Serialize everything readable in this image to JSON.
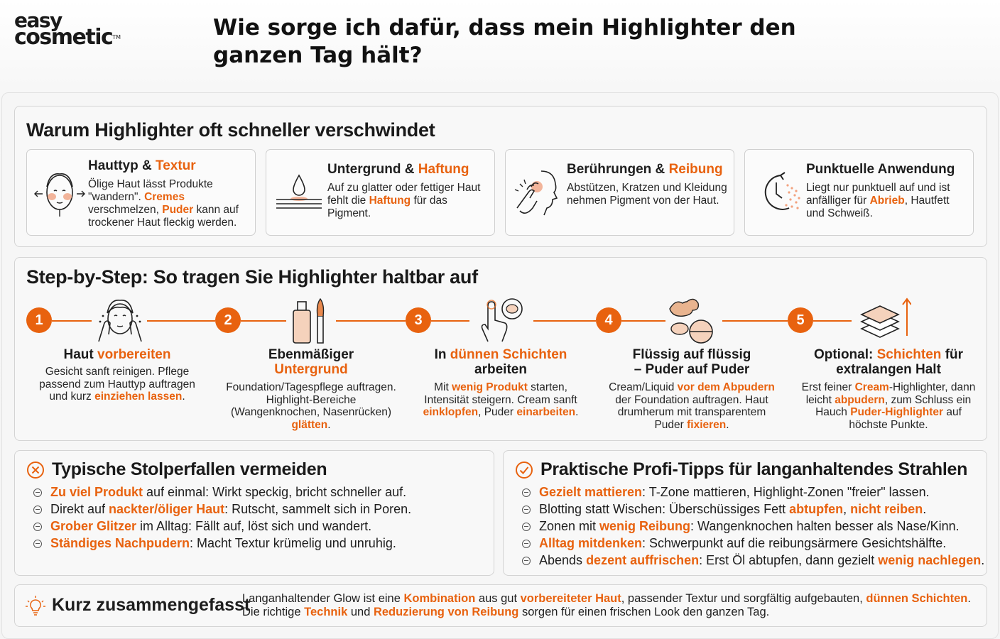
{
  "brand": {
    "line1": "easy",
    "line2": "cosmetic",
    "tm": "TM"
  },
  "title": "Wie sorge ich dafür, dass mein Highlighter den ganzen Tag hält?",
  "reasons": {
    "heading": "Warum Highlighter oft schneller verschwindet",
    "cards": [
      {
        "icon": "face-oily-skin-icon",
        "title": [
          "Hauttyp & ",
          "Textur"
        ],
        "desc": [
          [
            "Ölige Haut lässt Produkte \"wandern\". ",
            false
          ],
          [
            "Cremes",
            true
          ],
          [
            " verschmelzen, ",
            false
          ],
          [
            "Puder",
            true
          ],
          [
            " kann auf trockener Haut fleckig werden.",
            false
          ]
        ]
      },
      {
        "icon": "droplet-surface-icon",
        "title": [
          "Untergrund & ",
          "Haftung"
        ],
        "desc": [
          [
            "Auf zu glatter oder fettiger Haut fehlt die ",
            false
          ],
          [
            "Haftung",
            true
          ],
          [
            " für das Pigment.",
            false
          ]
        ]
      },
      {
        "icon": "hand-touching-face-icon",
        "title": [
          "Berührungen & ",
          "Reibung"
        ],
        "desc": [
          [
            "Abstützen, Kratzen und Kleidung nehmen Pigment von der Haut.",
            false
          ]
        ]
      },
      {
        "icon": "clock-dots-icon",
        "title": [
          "Punktuelle Anwendung",
          ""
        ],
        "desc": [
          [
            "Liegt nur punktuell auf und ist anfälliger für ",
            false
          ],
          [
            "Abrieb",
            true
          ],
          [
            ", Hautfett und Schweiß.",
            false
          ]
        ]
      }
    ]
  },
  "steps": {
    "heading": "Step-by-Step: So tragen Sie Highlighter haltbar auf",
    "items": [
      {
        "num": "1",
        "icon": "face-cleansing-icon",
        "title": [
          [
            "Haut ",
            false
          ],
          [
            "vorbereiten",
            true
          ]
        ],
        "desc": [
          [
            "Gesicht sanft reinigen. Pflege passend zum Hauttyp auftragen und kurz ",
            false
          ],
          [
            "einziehen lassen",
            true
          ],
          [
            ".",
            false
          ]
        ]
      },
      {
        "num": "2",
        "icon": "foundation-bottle-brush-icon",
        "title": [
          [
            "Ebenmäßiger ",
            false
          ],
          [
            "Untergrund",
            true
          ]
        ],
        "desc": [
          [
            "Foundation/Tagespflege auftragen. Highlight-Bereiche (Wangenknochen, Nasenrücken) ",
            false
          ],
          [
            "glätten",
            true
          ],
          [
            ".",
            false
          ]
        ]
      },
      {
        "num": "3",
        "icon": "finger-compact-icon",
        "title": [
          [
            "In ",
            false
          ],
          [
            "dünnen Schichten",
            true
          ],
          [
            " arbeiten",
            false
          ]
        ],
        "desc": [
          [
            "Mit ",
            false
          ],
          [
            "wenig Produkt",
            true
          ],
          [
            " starten, Intensität steigern. Cream sanft ",
            false
          ],
          [
            "einklopfen",
            true
          ],
          [
            ", Puder ",
            false
          ],
          [
            "einarbeiten",
            true
          ],
          [
            ".",
            false
          ]
        ]
      },
      {
        "num": "4",
        "icon": "cream-and-powder-icon",
        "title": [
          [
            "Flüssig auf flüssig – Puder auf Puder",
            false
          ]
        ],
        "desc": [
          [
            "Cream/Liquid ",
            false
          ],
          [
            "vor dem Abpudern",
            true
          ],
          [
            " der Foundation auftragen. Haut drumherum mit transparentem Puder ",
            false
          ],
          [
            "fixieren",
            true
          ],
          [
            ".",
            false
          ]
        ]
      },
      {
        "num": "5",
        "icon": "layers-arrow-up-icon",
        "title": [
          [
            "Optional: ",
            false
          ],
          [
            "Schichten",
            true
          ],
          [
            " für extralangen Halt",
            false
          ]
        ],
        "desc": [
          [
            "Erst feiner ",
            false
          ],
          [
            "Cream",
            true
          ],
          [
            "-Highlighter, dann leicht ",
            false
          ],
          [
            "abpudern",
            true
          ],
          [
            ", zum Schluss ein Hauch ",
            false
          ],
          [
            "Puder-Highlighter",
            true
          ],
          [
            " auf höchste Punkte.",
            false
          ]
        ]
      }
    ]
  },
  "pitfalls": {
    "heading": "Typische Stolperfallen vermeiden",
    "icon": "x-circle-icon",
    "items": [
      [
        [
          "Zu viel Produkt",
          true
        ],
        [
          " auf einmal: Wirkt speckig, bricht schneller auf.",
          false
        ]
      ],
      [
        [
          "Direkt auf ",
          false
        ],
        [
          "nackter/öliger Haut",
          true
        ],
        [
          ": Rutscht, sammelt sich in Poren.",
          false
        ]
      ],
      [
        [
          "Grober Glitzer",
          true
        ],
        [
          " im Alltag: Fällt auf, löst sich und wandert.",
          false
        ]
      ],
      [
        [
          "Ständiges Nachpudern",
          true
        ],
        [
          ": Macht Textur krümelig und unruhig.",
          false
        ]
      ]
    ]
  },
  "tips": {
    "heading": "Praktische Profi-Tipps für langanhaltendes Strahlen",
    "icon": "check-circle-icon",
    "items": [
      [
        [
          "Gezielt mattieren",
          true
        ],
        [
          ": T-Zone mattieren, Highlight-Zonen \"freier\" lassen.",
          false
        ]
      ],
      [
        [
          "Blotting statt Wischen: Überschüssiges Fett ",
          false
        ],
        [
          "abtupfen",
          true
        ],
        [
          ", ",
          false
        ],
        [
          "nicht reiben",
          true
        ],
        [
          ".",
          false
        ]
      ],
      [
        [
          "Zonen mit ",
          false
        ],
        [
          "wenig Reibung",
          true
        ],
        [
          ": Wangenknochen halten besser als Nase/Kinn.",
          false
        ]
      ],
      [
        [
          "Alltag mitdenken",
          true
        ],
        [
          ": Schwerpunkt auf die reibungsärmere Gesichtshälfte.",
          false
        ]
      ],
      [
        [
          "Abends ",
          false
        ],
        [
          "dezent auffrischen",
          true
        ],
        [
          ": Erst Öl abtupfen, dann gezielt ",
          false
        ],
        [
          "wenig nachlegen",
          true
        ],
        [
          ".",
          false
        ]
      ]
    ]
  },
  "summary": {
    "heading": "Kurz zusammengefasst",
    "icon": "lightbulb-icon",
    "text": [
      [
        "Langanhaltender Glow ist eine ",
        false
      ],
      [
        "Kombination",
        true
      ],
      [
        " aus gut ",
        false
      ],
      [
        "vorbereiteter Haut",
        true
      ],
      [
        ", passender Textur und sorgfältig aufgebauten, ",
        false
      ],
      [
        "dünnen Schichten",
        true
      ],
      [
        ". Die richtige ",
        false
      ],
      [
        "Technik",
        true
      ],
      [
        " und ",
        false
      ],
      [
        "Reduzierung von Reibung",
        true
      ],
      [
        " sorgen für einen frischen Look den ganzen Tag.",
        false
      ]
    ]
  },
  "colors": {
    "accent": "#e8620f",
    "text": "#1e1e1e",
    "border": "#d4d4d4"
  }
}
